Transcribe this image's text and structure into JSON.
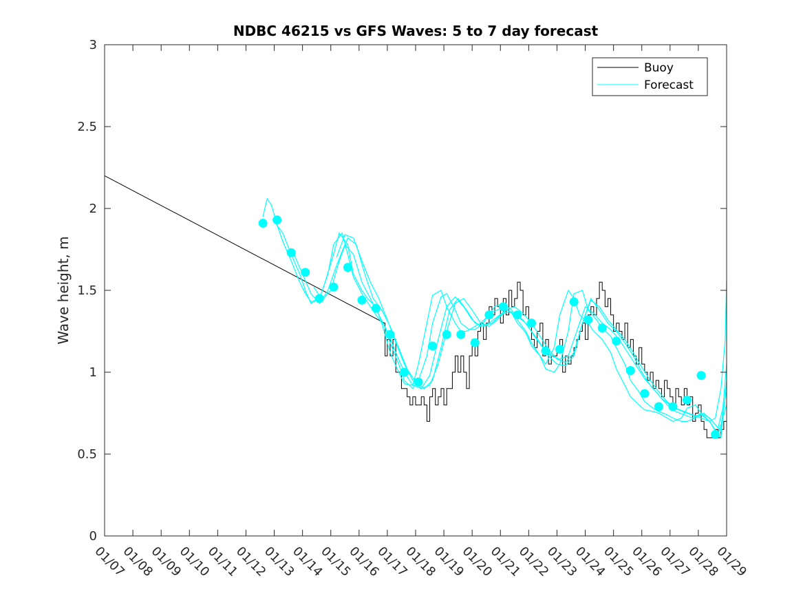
{
  "chart_data": {
    "type": "line",
    "title": "NDBC 46215 vs GFS Waves: 5 to 7 day forecast",
    "xlabel": "",
    "ylabel": "Wave height, m",
    "xlim": [
      0,
      22
    ],
    "ylim": [
      0,
      3
    ],
    "x_tick_values": [
      0,
      1,
      2,
      3,
      4,
      5,
      6,
      7,
      8,
      9,
      10,
      11,
      12,
      13,
      14,
      15,
      16,
      17,
      18,
      19,
      20,
      21,
      22
    ],
    "x_tick_labels": [
      "01/07",
      "01/08",
      "01/09",
      "01/10",
      "01/11",
      "01/12",
      "01/13",
      "01/14",
      "01/15",
      "01/16",
      "01/17",
      "01/18",
      "01/19",
      "01/20",
      "01/21",
      "01/22",
      "01/23",
      "01/24",
      "01/25",
      "01/26",
      "01/27",
      "01/28",
      "01/29"
    ],
    "y_tick_values": [
      0,
      0.5,
      1,
      1.5,
      2,
      2.5,
      3
    ],
    "y_tick_labels": [
      "0",
      "0.5",
      "1",
      "1.5",
      "2",
      "2.5",
      "3"
    ],
    "legend": {
      "position": "top-right",
      "entries": [
        "Buoy",
        "Forecast"
      ]
    },
    "colors": {
      "buoy": "#000000",
      "forecast": "#00ffff",
      "axes": "#262626"
    },
    "series": [
      {
        "name": "Buoy",
        "x": [
          0,
          9.9,
          9.92,
          10.0,
          10.1,
          10.2,
          10.3,
          10.4,
          10.5,
          10.6,
          10.7,
          10.8,
          10.9,
          11.0,
          11.1,
          11.2,
          11.3,
          11.4,
          11.5,
          11.6,
          11.7,
          11.8,
          11.9,
          12.0,
          12.1,
          12.2,
          12.3,
          12.4,
          12.5,
          12.6,
          12.7,
          12.8,
          12.9,
          13.0,
          13.1,
          13.2,
          13.3,
          13.4,
          13.5,
          13.6,
          13.7,
          13.8,
          13.9,
          14.0,
          14.1,
          14.2,
          14.3,
          14.4,
          14.5,
          14.6,
          14.7,
          14.8,
          14.9,
          15.0,
          15.1,
          15.2,
          15.3,
          15.4,
          15.5,
          15.6,
          15.7,
          15.8,
          15.9,
          16.0,
          16.1,
          16.2,
          16.3,
          16.4,
          16.5,
          16.6,
          16.7,
          16.8,
          16.9,
          17.0,
          17.1,
          17.2,
          17.3,
          17.4,
          17.5,
          17.6,
          17.7,
          17.8,
          17.9,
          18.0,
          18.1,
          18.2,
          18.3,
          18.4,
          18.5,
          18.6,
          18.7,
          18.8,
          18.9,
          19.0,
          19.1,
          19.2,
          19.3,
          19.4,
          19.5,
          19.6,
          19.7,
          19.8,
          19.9,
          20.0,
          20.1,
          20.2,
          20.3,
          20.4,
          20.5,
          20.6,
          20.7,
          20.8,
          20.9,
          21.0,
          21.1,
          21.2,
          21.3,
          21.4,
          21.5,
          21.6,
          21.7,
          21.8,
          21.9,
          22.0
        ],
        "y": [
          2.2,
          1.3,
          1.1,
          1.2,
          1.1,
          1.2,
          1.0,
          1.0,
          0.9,
          0.9,
          0.85,
          0.8,
          0.85,
          0.8,
          0.8,
          0.85,
          0.8,
          0.7,
          0.85,
          0.9,
          0.8,
          0.85,
          0.9,
          0.8,
          0.9,
          0.9,
          1.0,
          1.1,
          1.0,
          1.1,
          1.0,
          0.9,
          1.1,
          1.2,
          1.1,
          1.25,
          1.3,
          1.2,
          1.3,
          1.4,
          1.35,
          1.45,
          1.4,
          1.3,
          1.45,
          1.35,
          1.5,
          1.4,
          1.45,
          1.55,
          1.5,
          1.35,
          1.4,
          1.3,
          1.2,
          1.15,
          1.25,
          1.3,
          1.1,
          1.2,
          1.05,
          1.1,
          1.1,
          1.15,
          1.2,
          1.0,
          1.1,
          1.05,
          1.1,
          1.15,
          1.2,
          1.25,
          1.3,
          1.2,
          1.35,
          1.4,
          1.35,
          1.45,
          1.55,
          1.5,
          1.4,
          1.45,
          1.35,
          1.25,
          1.3,
          1.25,
          1.2,
          1.3,
          1.15,
          1.2,
          1.1,
          1.05,
          1.15,
          1.05,
          1.0,
          0.95,
          1.0,
          0.9,
          0.95,
          0.9,
          0.85,
          0.95,
          0.9,
          0.85,
          0.8,
          0.9,
          0.85,
          0.8,
          0.9,
          0.8,
          0.85,
          0.7,
          0.75,
          0.8,
          0.7,
          0.65,
          0.6,
          0.6,
          0.6,
          0.65,
          0.6,
          0.65,
          0.7,
          0.75
        ]
      },
      {
        "name": "Forecast",
        "x": [
          5.6,
          6.1,
          6.6,
          7.1,
          7.6,
          8.1,
          8.6,
          9.1,
          9.6,
          10.1,
          10.6,
          11.1,
          11.6,
          12.1,
          12.6,
          13.1,
          13.6,
          14.1,
          14.6,
          15.1,
          15.6,
          16.1,
          16.6,
          17.1,
          17.6,
          18.1,
          18.6,
          19.1,
          19.6,
          20.1,
          20.6,
          21.1,
          21.6
        ],
        "y": [
          1.91,
          1.93,
          1.73,
          1.61,
          1.45,
          1.52,
          1.64,
          1.44,
          1.39,
          1.23,
          1.0,
          0.94,
          1.16,
          1.23,
          1.23,
          1.18,
          1.35,
          1.4,
          1.35,
          1.3,
          1.13,
          1.14,
          1.43,
          1.32,
          1.27,
          1.19,
          1.01,
          0.87,
          0.79,
          0.79,
          0.83,
          0.98,
          0.62
        ]
      }
    ],
    "forecast_runs": [
      {
        "x": [
          5.6,
          5.75,
          5.9,
          6.1,
          6.3,
          6.6,
          6.9,
          7.1,
          7.3,
          7.6,
          7.8,
          8.1,
          8.3,
          8.6,
          8.8,
          9.1,
          9.3,
          9.6,
          9.8,
          10.1,
          10.4,
          10.6,
          10.9,
          11.1,
          11.4,
          11.6,
          11.9,
          12.1,
          12.4,
          12.6,
          12.8,
          13.1,
          13.3,
          13.6,
          13.8,
          14.1,
          14.4,
          14.6,
          14.9,
          15.1,
          15.4,
          15.6,
          15.9,
          16.1,
          16.4,
          16.6,
          16.8,
          17.1,
          17.3,
          17.6,
          17.9,
          18.1,
          18.4,
          18.6,
          18.9,
          19.1,
          19.4,
          19.6,
          19.9,
          20.1,
          20.4,
          20.6,
          20.9,
          21.1,
          21.4,
          21.6,
          21.8,
          21.95,
          22.0
        ],
        "y": [
          1.95,
          2.06,
          2.02,
          1.9,
          1.8,
          1.68,
          1.55,
          1.48,
          1.43,
          1.45,
          1.55,
          1.72,
          1.85,
          1.78,
          1.6,
          1.5,
          1.45,
          1.4,
          1.3,
          1.12,
          1.0,
          0.93,
          0.92,
          1.05,
          1.3,
          1.47,
          1.5,
          1.4,
          1.3,
          1.25,
          1.25,
          1.28,
          1.3,
          1.35,
          1.4,
          1.42,
          1.38,
          1.32,
          1.25,
          1.18,
          1.1,
          1.05,
          1.15,
          1.35,
          1.5,
          1.45,
          1.35,
          1.3,
          1.25,
          1.2,
          1.12,
          1.02,
          0.92,
          0.85,
          0.8,
          0.77,
          0.76,
          0.75,
          0.72,
          0.7,
          0.72,
          0.78,
          0.8,
          0.75,
          0.7,
          0.72,
          0.9,
          1.2,
          1.56
        ]
      },
      {
        "x": [
          6.0,
          6.3,
          6.6,
          6.9,
          7.1,
          7.3,
          7.6,
          7.9,
          8.1,
          8.4,
          8.6,
          8.8,
          9.1,
          9.4,
          9.6,
          9.9,
          10.1,
          10.4,
          10.6,
          10.9,
          11.1,
          11.4,
          11.6,
          11.9,
          12.1,
          12.4,
          12.6,
          12.9,
          13.1,
          13.4,
          13.6,
          13.9,
          14.1,
          14.4,
          14.6,
          14.9,
          15.1,
          15.4,
          15.6,
          15.9,
          16.1,
          16.4,
          16.6,
          16.9,
          17.1,
          17.4,
          17.6,
          17.9,
          18.1,
          18.4,
          18.6,
          18.9,
          19.1,
          19.4,
          19.6,
          19.9,
          20.1,
          20.4,
          20.6,
          20.9,
          21.1,
          21.4,
          21.6,
          21.8,
          22.0
        ],
        "y": [
          1.92,
          1.85,
          1.72,
          1.6,
          1.5,
          1.42,
          1.45,
          1.6,
          1.78,
          1.85,
          1.72,
          1.58,
          1.48,
          1.4,
          1.35,
          1.28,
          1.18,
          1.05,
          0.95,
          0.9,
          0.95,
          1.1,
          1.3,
          1.46,
          1.48,
          1.38,
          1.3,
          1.26,
          1.26,
          1.3,
          1.36,
          1.38,
          1.4,
          1.36,
          1.3,
          1.24,
          1.16,
          1.1,
          1.02,
          1.0,
          1.05,
          1.25,
          1.48,
          1.5,
          1.38,
          1.32,
          1.27,
          1.22,
          1.15,
          1.05,
          0.95,
          0.88,
          0.82,
          0.78,
          0.76,
          0.74,
          0.72,
          0.7,
          0.7,
          0.72,
          0.74,
          0.7,
          0.64,
          0.6,
          0.95
        ]
      },
      {
        "x": [
          6.7,
          7.0,
          7.3,
          7.6,
          7.9,
          8.2,
          8.5,
          8.8,
          9.1,
          9.4,
          9.7,
          10.0,
          10.3,
          10.6,
          10.9,
          11.2,
          11.5,
          11.8,
          12.1,
          12.4,
          12.7,
          13.0,
          13.3,
          13.6,
          13.9,
          14.2,
          14.5,
          14.8,
          15.1,
          15.4,
          15.7,
          16.0,
          16.3,
          16.6,
          16.9,
          17.2,
          17.5,
          17.8,
          18.1,
          18.4,
          18.7,
          19.0,
          19.3,
          19.6,
          19.9,
          20.2,
          20.5,
          20.8,
          21.1,
          21.4,
          21.7,
          22.0
        ],
        "y": [
          1.72,
          1.6,
          1.48,
          1.42,
          1.5,
          1.65,
          1.78,
          1.72,
          1.55,
          1.45,
          1.35,
          1.25,
          1.12,
          1.0,
          0.92,
          0.9,
          0.98,
          1.2,
          1.4,
          1.46,
          1.4,
          1.32,
          1.28,
          1.3,
          1.34,
          1.38,
          1.36,
          1.32,
          1.25,
          1.18,
          1.1,
          1.05,
          1.04,
          1.1,
          1.3,
          1.45,
          1.38,
          1.3,
          1.25,
          1.18,
          1.1,
          1.0,
          0.92,
          0.86,
          0.8,
          0.76,
          0.74,
          0.72,
          0.75,
          0.72,
          0.66,
          0.88
        ]
      },
      {
        "x": [
          7.4,
          7.7,
          8.0,
          8.3,
          8.6,
          8.9,
          9.2,
          9.5,
          9.8,
          10.1,
          10.4,
          10.7,
          11.0,
          11.3,
          11.6,
          11.9,
          12.2,
          12.5,
          12.8,
          13.1,
          13.4,
          13.7,
          14.0,
          14.3,
          14.6,
          14.9,
          15.2,
          15.5,
          15.8,
          16.1,
          16.4,
          16.7,
          17.0,
          17.3,
          17.6,
          17.9,
          18.2,
          18.5,
          18.8,
          19.1,
          19.4,
          19.7,
          20.0,
          20.3,
          20.6,
          20.9,
          21.2,
          21.5,
          21.8,
          22.0
        ],
        "y": [
          1.52,
          1.44,
          1.5,
          1.68,
          1.82,
          1.78,
          1.6,
          1.45,
          1.38,
          1.28,
          1.15,
          1.02,
          0.94,
          0.9,
          0.95,
          1.15,
          1.38,
          1.45,
          1.38,
          1.3,
          1.28,
          1.3,
          1.35,
          1.37,
          1.34,
          1.3,
          1.22,
          1.15,
          1.1,
          1.08,
          1.1,
          1.25,
          1.4,
          1.36,
          1.3,
          1.26,
          1.2,
          1.12,
          1.04,
          0.96,
          0.9,
          0.84,
          0.8,
          0.77,
          0.75,
          0.73,
          0.75,
          0.7,
          0.64,
          1.05
        ]
      },
      {
        "x": [
          8.2,
          8.5,
          8.8,
          9.1,
          9.4,
          9.7,
          10.0,
          10.3,
          10.6,
          10.9,
          11.2,
          11.5,
          11.8,
          12.1,
          12.4,
          12.7,
          13.0,
          13.3,
          13.6,
          13.9,
          14.2,
          14.5,
          14.8,
          15.1,
          15.4,
          15.7,
          16.0,
          16.3,
          16.6,
          16.9,
          17.2,
          17.5,
          17.8,
          18.1,
          18.4,
          18.7,
          19.0,
          19.3,
          19.6,
          19.9,
          20.2,
          20.5,
          20.8,
          21.1,
          21.4,
          21.7,
          22.0
        ],
        "y": [
          1.7,
          1.84,
          1.82,
          1.68,
          1.55,
          1.45,
          1.32,
          1.18,
          1.05,
          0.95,
          0.9,
          0.92,
          1.05,
          1.25,
          1.42,
          1.45,
          1.38,
          1.3,
          1.28,
          1.32,
          1.38,
          1.4,
          1.36,
          1.3,
          1.22,
          1.14,
          1.08,
          1.06,
          1.12,
          1.3,
          1.44,
          1.4,
          1.32,
          1.26,
          1.2,
          1.12,
          1.03,
          0.95,
          0.88,
          0.82,
          0.78,
          0.76,
          0.74,
          0.72,
          0.7,
          0.62,
          0.8
        ]
      }
    ]
  }
}
